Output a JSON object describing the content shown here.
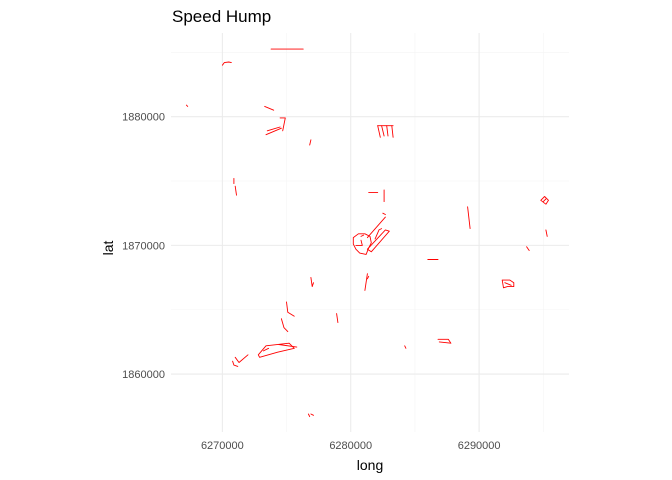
{
  "chart_data": {
    "type": "map",
    "title": "Speed Hump",
    "xlabel": "long",
    "ylabel": "lat",
    "xlim": [
      6266000,
      6297000
    ],
    "ylim": [
      1855500,
      1886500
    ],
    "x_ticks": [
      6270000,
      6280000,
      6290000
    ],
    "x_tick_labels": [
      "6270000",
      "6280000",
      "6290000"
    ],
    "y_ticks": [
      1860000,
      1870000,
      1880000
    ],
    "y_tick_labels": [
      "1860000",
      "1870000",
      "1880000"
    ],
    "x_minor": [
      6275000,
      6285000,
      6295000
    ],
    "y_minor": [
      1865000,
      1875000,
      1885000
    ],
    "grid": true,
    "line_color": "#ff0000",
    "series": [
      {
        "values": [
          [
            6270000,
            1884000
          ],
          [
            6270150,
            1884200
          ],
          [
            6270500,
            1884250
          ],
          [
            6270700,
            1884200
          ]
        ]
      },
      {
        "values": [
          [
            6273800,
            1885250
          ],
          [
            6276300,
            1885250
          ]
        ]
      },
      {
        "values": [
          [
            6267200,
            1880900
          ],
          [
            6267300,
            1880800
          ]
        ]
      },
      {
        "values": [
          [
            6273300,
            1880800
          ],
          [
            6274000,
            1880500
          ]
        ]
      },
      {
        "values": [
          [
            6274500,
            1879900
          ],
          [
            6274900,
            1879900
          ],
          [
            6274700,
            1878900
          ]
        ]
      },
      {
        "values": [
          [
            6273400,
            1878600
          ],
          [
            6274600,
            1879100
          ]
        ]
      },
      {
        "values": [
          [
            6273500,
            1878900
          ],
          [
            6274500,
            1879200
          ]
        ]
      },
      {
        "values": [
          [
            6276900,
            1878200
          ],
          [
            6276800,
            1877800
          ]
        ]
      },
      {
        "values": [
          [
            6282100,
            1879300
          ],
          [
            6282300,
            1878400
          ]
        ]
      },
      {
        "values": [
          [
            6282400,
            1879300
          ],
          [
            6282600,
            1878500
          ]
        ]
      },
      {
        "values": [
          [
            6282800,
            1879300
          ],
          [
            6282900,
            1878500
          ]
        ]
      },
      {
        "values": [
          [
            6283200,
            1879300
          ],
          [
            6283300,
            1878400
          ]
        ]
      },
      {
        "values": [
          [
            6282100,
            1879300
          ],
          [
            6283300,
            1879300
          ]
        ]
      },
      {
        "values": [
          [
            6270900,
            1875200
          ],
          [
            6270900,
            1874800
          ]
        ]
      },
      {
        "values": [
          [
            6271000,
            1874600
          ],
          [
            6271100,
            1873900
          ]
        ]
      },
      {
        "values": [
          [
            6281400,
            1874100
          ],
          [
            6282100,
            1874100
          ]
        ]
      },
      {
        "values": [
          [
            6282600,
            1874300
          ],
          [
            6282600,
            1873400
          ]
        ]
      },
      {
        "values": [
          [
            6280200,
            1870600
          ],
          [
            6280600,
            1870900
          ],
          [
            6281100,
            1870900
          ],
          [
            6281500,
            1870700
          ],
          [
            6281600,
            1870200
          ],
          [
            6281400,
            1869800
          ],
          [
            6281200,
            1869300
          ],
          [
            6280700,
            1869400
          ],
          [
            6280400,
            1869700
          ],
          [
            6280200,
            1870100
          ],
          [
            6280200,
            1870600
          ]
        ]
      },
      {
        "values": [
          [
            6280400,
            1870000
          ],
          [
            6280900,
            1870000
          ],
          [
            6280800,
            1870400
          ]
        ]
      },
      {
        "values": [
          [
            6281300,
            1869700
          ],
          [
            6282700,
            1871200
          ],
          [
            6283000,
            1871100
          ],
          [
            6281600,
            1869500
          ],
          [
            6281300,
            1869700
          ]
        ]
      },
      {
        "values": [
          [
            6281900,
            1870500
          ],
          [
            6282200,
            1871200
          ],
          [
            6282400,
            1871300
          ]
        ]
      },
      {
        "values": [
          [
            6281300,
            1870600
          ],
          [
            6282700,
            1872200
          ]
        ]
      },
      {
        "values": [
          [
            6282500,
            1872500
          ],
          [
            6282700,
            1872400
          ]
        ]
      },
      {
        "values": [
          [
            6280800,
            1870700
          ],
          [
            6281000,
            1870800
          ]
        ]
      },
      {
        "values": [
          [
            6289100,
            1873000
          ],
          [
            6289300,
            1871300
          ]
        ]
      },
      {
        "values": [
          [
            6294800,
            1873500
          ],
          [
            6295100,
            1873800
          ],
          [
            6295400,
            1873500
          ],
          [
            6295200,
            1873200
          ],
          [
            6294800,
            1873500
          ]
        ]
      },
      {
        "values": [
          [
            6295000,
            1873400
          ],
          [
            6295200,
            1873600
          ]
        ]
      },
      {
        "values": [
          [
            6295200,
            1871200
          ],
          [
            6295300,
            1870700
          ]
        ]
      },
      {
        "values": [
          [
            6293700,
            1869900
          ],
          [
            6293900,
            1869600
          ]
        ]
      },
      {
        "values": [
          [
            6286000,
            1868900
          ],
          [
            6286800,
            1868900
          ]
        ]
      },
      {
        "values": [
          [
            6291800,
            1867300
          ],
          [
            6292400,
            1867300
          ],
          [
            6292700,
            1867100
          ],
          [
            6292700,
            1866800
          ],
          [
            6292200,
            1866800
          ],
          [
            6291900,
            1866700
          ],
          [
            6291800,
            1867300
          ]
        ]
      },
      {
        "values": [
          [
            6292000,
            1867100
          ],
          [
            6292500,
            1866900
          ]
        ]
      },
      {
        "values": [
          [
            6281300,
            1867800
          ],
          [
            6281100,
            1866500
          ]
        ]
      },
      {
        "values": [
          [
            6281400,
            1867600
          ],
          [
            6281300,
            1867400
          ]
        ]
      },
      {
        "values": [
          [
            6276900,
            1867500
          ],
          [
            6277000,
            1866800
          ],
          [
            6277100,
            1867100
          ]
        ]
      },
      {
        "values": [
          [
            6275000,
            1865600
          ],
          [
            6275100,
            1864800
          ],
          [
            6275600,
            1864500
          ]
        ]
      },
      {
        "values": [
          [
            6274600,
            1864300
          ],
          [
            6274800,
            1863600
          ],
          [
            6275100,
            1863300
          ]
        ]
      },
      {
        "values": [
          [
            6278900,
            1864700
          ],
          [
            6279000,
            1864000
          ]
        ]
      },
      {
        "values": [
          [
            6274400,
            1862300
          ],
          [
            6275800,
            1862100
          ]
        ]
      },
      {
        "values": [
          [
            6272800,
            1861500
          ],
          [
            6273400,
            1862200
          ],
          [
            6275200,
            1862400
          ],
          [
            6275600,
            1862000
          ],
          [
            6274300,
            1861700
          ],
          [
            6272900,
            1861300
          ],
          [
            6272800,
            1861500
          ]
        ]
      },
      {
        "values": [
          [
            6271000,
            1861300
          ],
          [
            6271300,
            1860900
          ],
          [
            6272000,
            1861500
          ]
        ]
      },
      {
        "values": [
          [
            6270800,
            1861000
          ],
          [
            6270900,
            1860700
          ],
          [
            6271200,
            1860600
          ]
        ]
      },
      {
        "values": [
          [
            6273200,
            1861800
          ],
          [
            6273600,
            1862000
          ]
        ]
      },
      {
        "values": [
          [
            6284200,
            1862200
          ],
          [
            6284300,
            1862000
          ]
        ]
      },
      {
        "values": [
          [
            6286800,
            1862700
          ],
          [
            6287600,
            1862700
          ],
          [
            6287800,
            1862400
          ],
          [
            6286900,
            1862500
          ]
        ]
      },
      {
        "values": [
          [
            6276900,
            1856900
          ],
          [
            6277100,
            1856800
          ]
        ]
      },
      {
        "values": [
          [
            6276700,
            1856900
          ],
          [
            6276800,
            1856700
          ]
        ]
      }
    ]
  }
}
